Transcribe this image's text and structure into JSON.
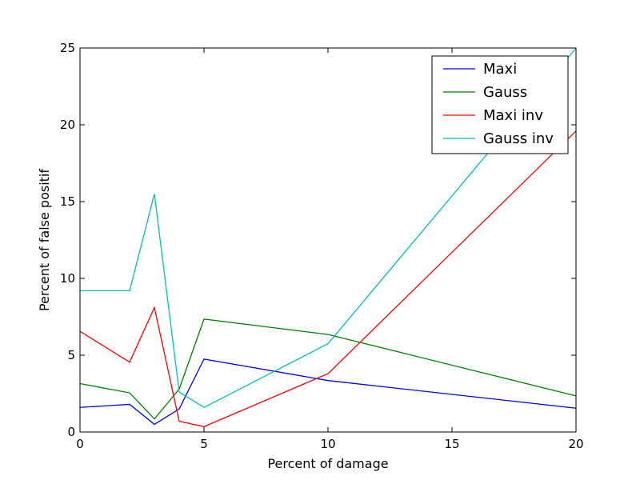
{
  "chart_data": {
    "type": "line",
    "title": "",
    "xlabel": "Percent of damage",
    "ylabel": "Percent of false positif",
    "xlim": [
      0,
      20
    ],
    "ylim": [
      0,
      25
    ],
    "xticks": [
      0,
      5,
      10,
      15,
      20
    ],
    "yticks": [
      0,
      5,
      10,
      15,
      20,
      25
    ],
    "grid": false,
    "legend_position": "top-right",
    "x": [
      0,
      2,
      3,
      4,
      5,
      10,
      20
    ],
    "series": [
      {
        "name": "Maxi",
        "color": "#0000ff",
        "values": [
          1.6,
          1.8,
          0.5,
          1.5,
          4.75,
          3.35,
          1.55
        ]
      },
      {
        "name": "Gauss",
        "color": "#008000",
        "values": [
          3.15,
          2.55,
          0.85,
          2.8,
          7.35,
          6.35,
          2.35
        ]
      },
      {
        "name": "Maxi inv",
        "color": "#ff0000",
        "values": [
          6.55,
          4.55,
          8.1,
          0.7,
          0.35,
          3.8,
          19.6
        ]
      },
      {
        "name": "Gauss inv",
        "color": "#00bfbf",
        "values": [
          9.2,
          9.2,
          15.5,
          2.6,
          1.6,
          5.75,
          25.0
        ]
      }
    ]
  }
}
